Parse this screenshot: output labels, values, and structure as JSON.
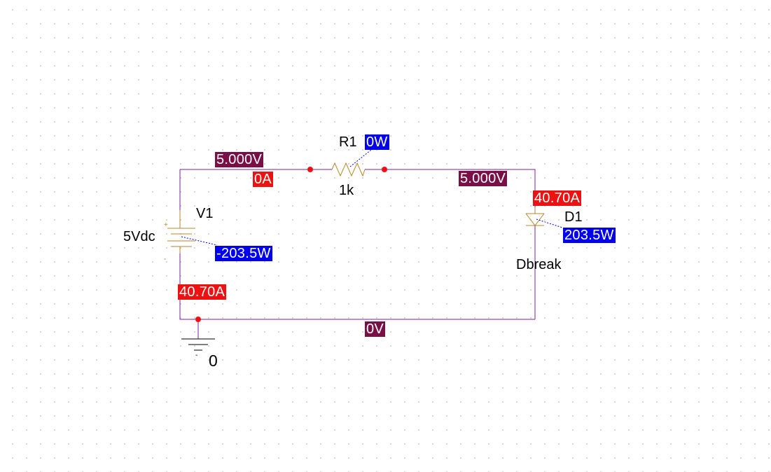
{
  "colors": {
    "wire": "#7b1fa2",
    "component": "#b8862b",
    "ground": "#000000",
    "node_dot": "#ee1111",
    "voltage_tag": "#7a0e46",
    "current_tag": "#ee1111",
    "power_tag": "#0000ee"
  },
  "components": {
    "v1": {
      "ref": "V1",
      "value": "5Vdc",
      "plus": "+",
      "minus": "-"
    },
    "r1": {
      "ref": "R1",
      "value": "1k"
    },
    "d1": {
      "ref": "D1",
      "model": "Dbreak"
    },
    "ground": {
      "net": "0"
    }
  },
  "markers": {
    "v_top_left": "5.000V",
    "v_top_right": "5.000V",
    "v_bottom": "0V",
    "i_r1": "0A",
    "i_d1": "40.70A",
    "i_v1": "40.70A",
    "p_r1": "0W",
    "p_d1": "203.5W",
    "p_v1": "-203.5W"
  }
}
